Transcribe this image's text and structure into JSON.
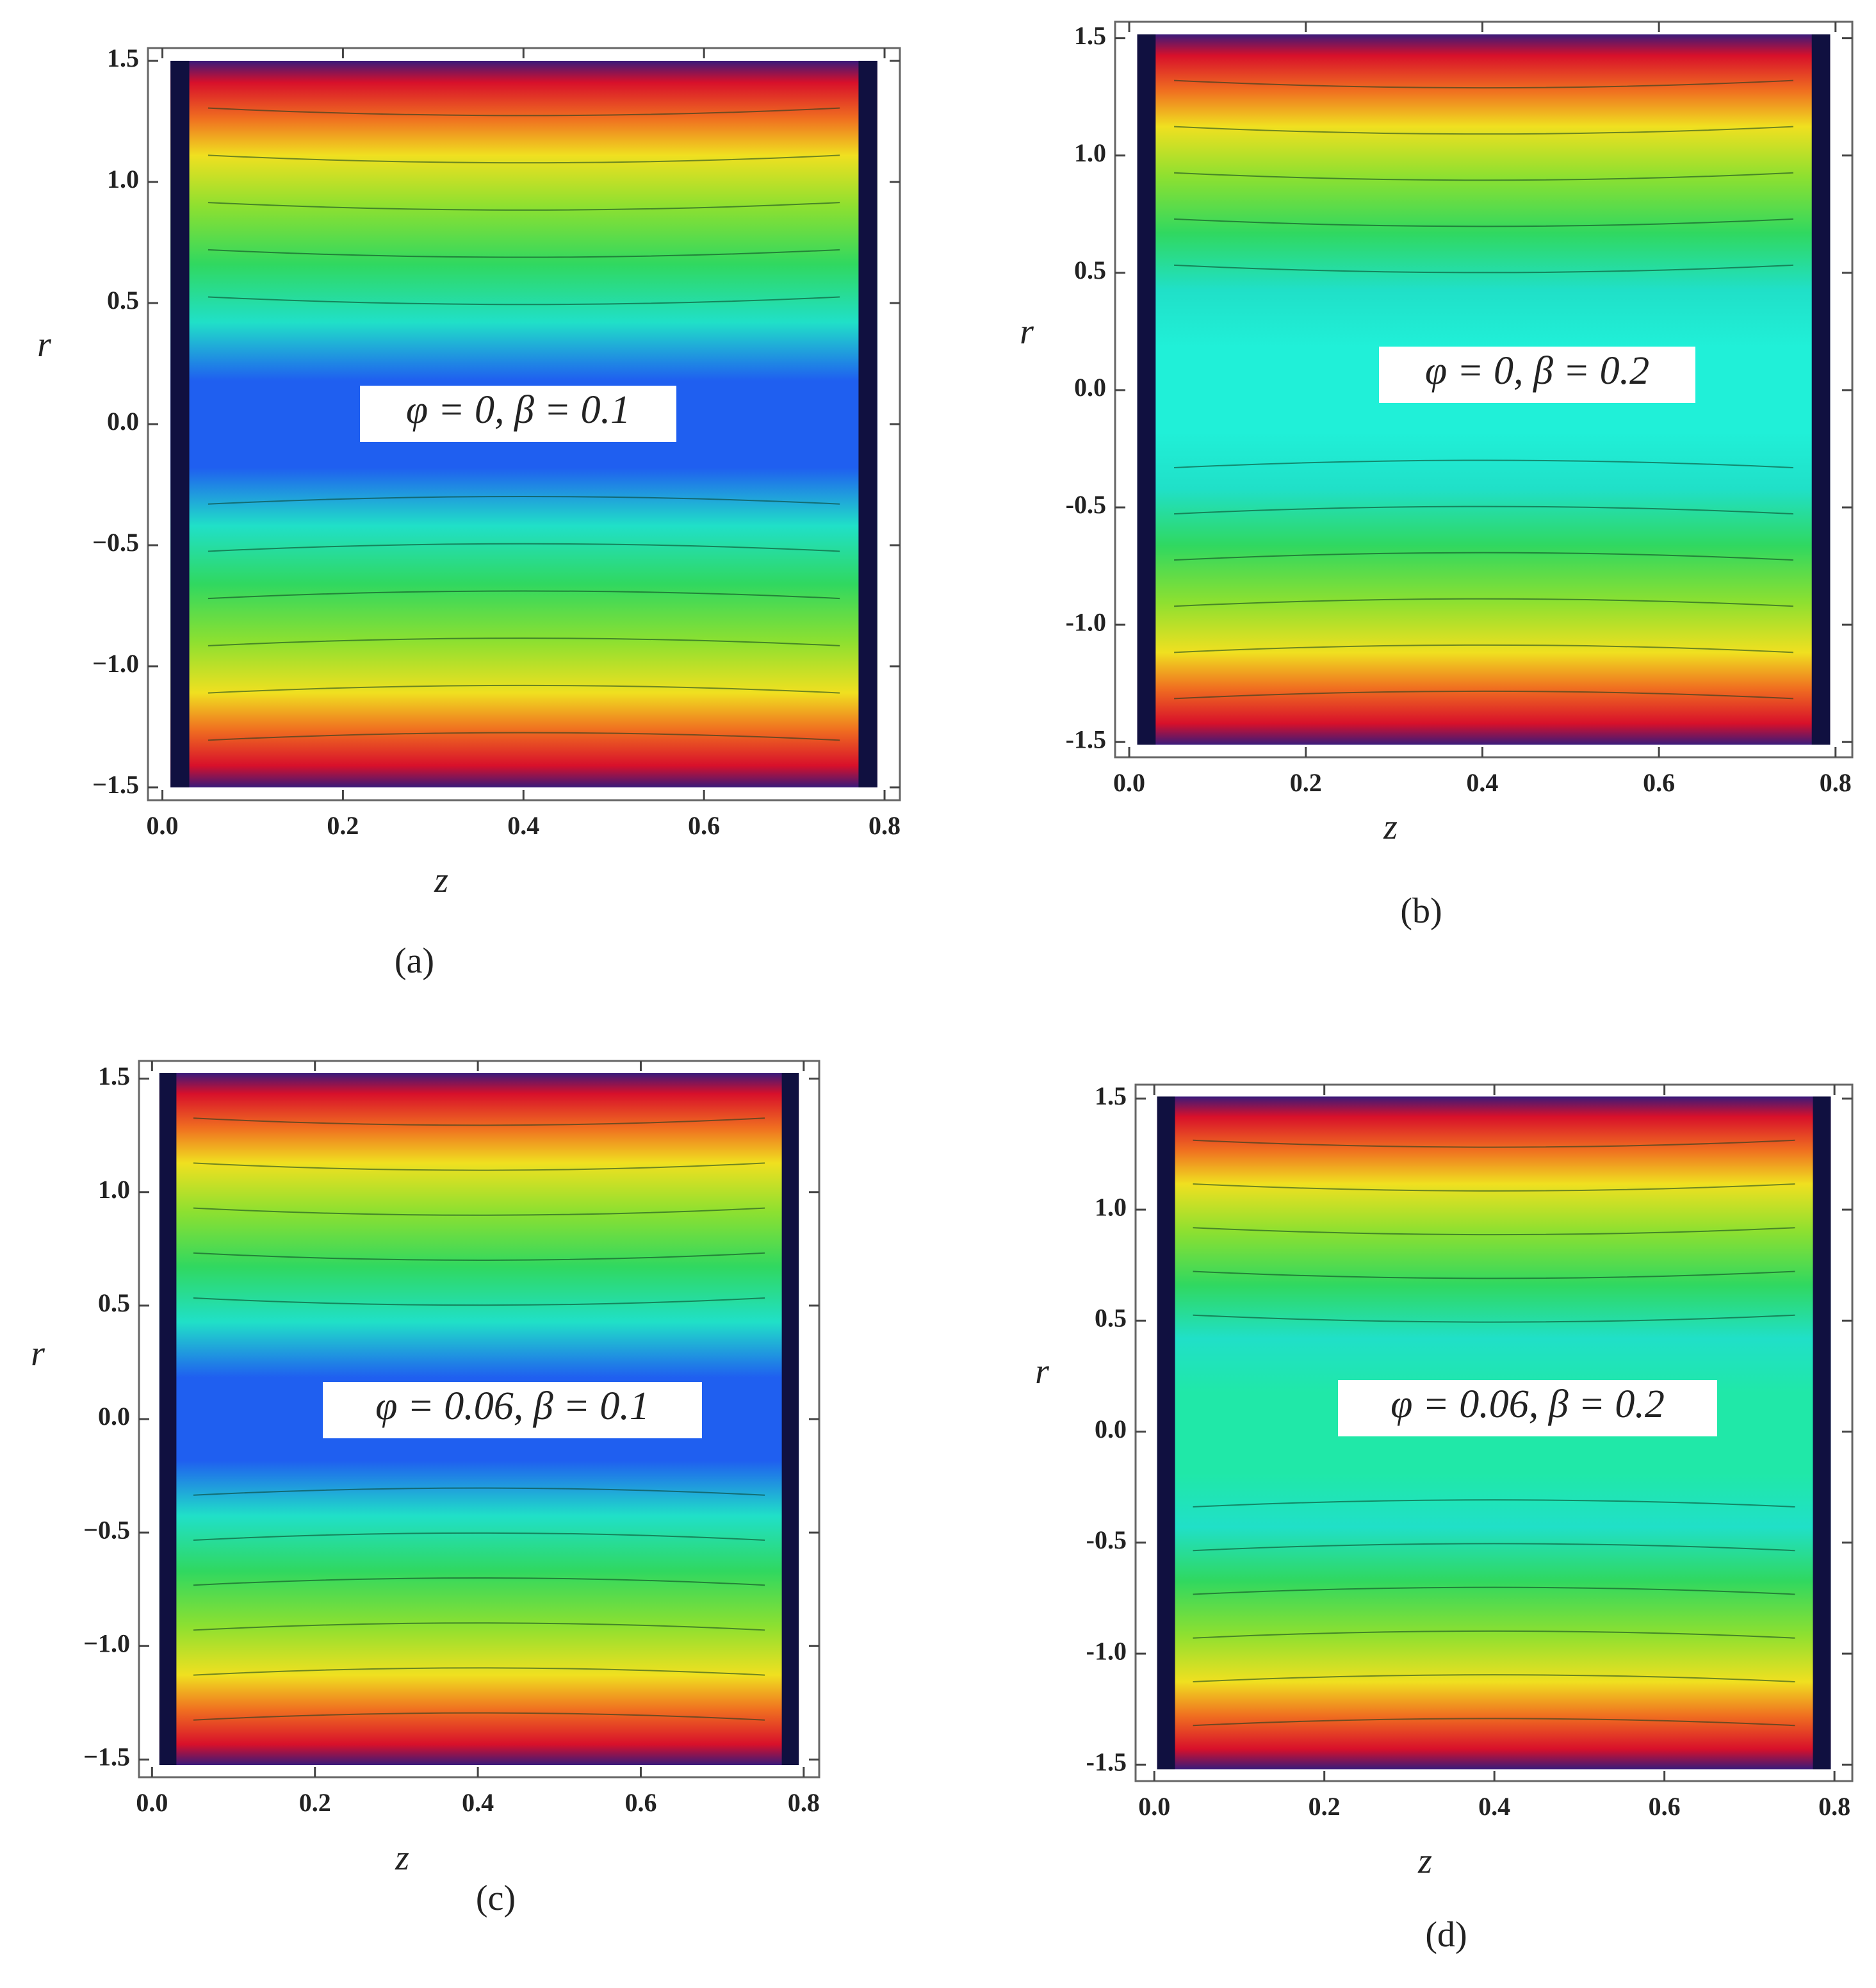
{
  "chart_data": [
    {
      "type": "contour",
      "annotation": "φ = 0, β = 0.1",
      "caption": "(a)",
      "xlabel": "z",
      "ylabel": "r",
      "color_center": "#1f5ff0",
      "xlim": [
        -0.016,
        0.817
      ],
      "ylim": [
        -1.553,
        1.553
      ],
      "xticks": [
        {
          "value": 0,
          "label": "0.0"
        },
        0.2,
        0.4,
        0.6,
        0.8
      ],
      "yticks": [
        {
          "value": -1.5,
          "label": "−1.5"
        },
        {
          "value": -1,
          "label": "−1.0"
        },
        {
          "value": -0.5,
          "label": "−0.5"
        },
        {
          "value": 0,
          "label": "0.0"
        },
        0.5,
        {
          "value": 1,
          "label": "1.0"
        },
        1.5
      ]
    },
    {
      "type": "contour",
      "annotation": "φ = 0, β = 0.2",
      "caption": "(b)",
      "xlabel": "z",
      "ylabel": "r",
      "color_center": "#20f0d8",
      "xlim": [
        -0.016,
        0.819
      ],
      "ylim": [
        -1.565,
        1.57
      ],
      "xticks": [
        {
          "value": 0,
          "label": "0.0"
        },
        0.2,
        0.4,
        0.6,
        0.8
      ],
      "yticks": [
        {
          "value": -1.5,
          "label": "-1.5"
        },
        {
          "value": -1,
          "label": "-1.0"
        },
        {
          "value": -0.5,
          "label": "-0.5"
        },
        {
          "value": 0,
          "label": "0.0"
        },
        0.5,
        {
          "value": 1,
          "label": "1.0"
        },
        1.5
      ]
    },
    {
      "type": "contour",
      "annotation": "φ = 0.06, β = 0.1",
      "caption": "(c)",
      "xlabel": "z",
      "ylabel": "r",
      "color_center": "#1f5ff0",
      "xlim": [
        -0.016,
        0.819
      ],
      "ylim": [
        -1.578,
        1.578
      ],
      "xticks": [
        {
          "value": 0,
          "label": "0.0"
        },
        0.2,
        0.4,
        0.6,
        0.8
      ],
      "yticks": [
        {
          "value": -1.5,
          "label": "−1.5"
        },
        {
          "value": -1,
          "label": "−1.0"
        },
        {
          "value": -0.5,
          "label": "−0.5"
        },
        {
          "value": 0,
          "label": "0.0"
        },
        0.5,
        {
          "value": 1,
          "label": "1.0"
        },
        1.5
      ]
    },
    {
      "type": "contour",
      "annotation": "φ = 0.06, β = 0.2",
      "caption": "(d)",
      "xlabel": "z",
      "ylabel": "r",
      "color_center": "#20e8a8",
      "xlim": [
        -0.022,
        0.821
      ],
      "ylim": [
        -1.574,
        1.563
      ],
      "xticks": [
        {
          "value": 0,
          "label": "0.0"
        },
        0.2,
        0.4,
        0.6,
        0.8
      ],
      "yticks": [
        {
          "value": -1.5,
          "label": "-1.5"
        },
        {
          "value": -1,
          "label": "-1.0"
        },
        {
          "value": -0.5,
          "label": "-0.5"
        },
        {
          "value": 0,
          "label": "0.0"
        },
        0.5,
        {
          "value": 1,
          "label": "1.0"
        },
        1.5
      ]
    }
  ]
}
